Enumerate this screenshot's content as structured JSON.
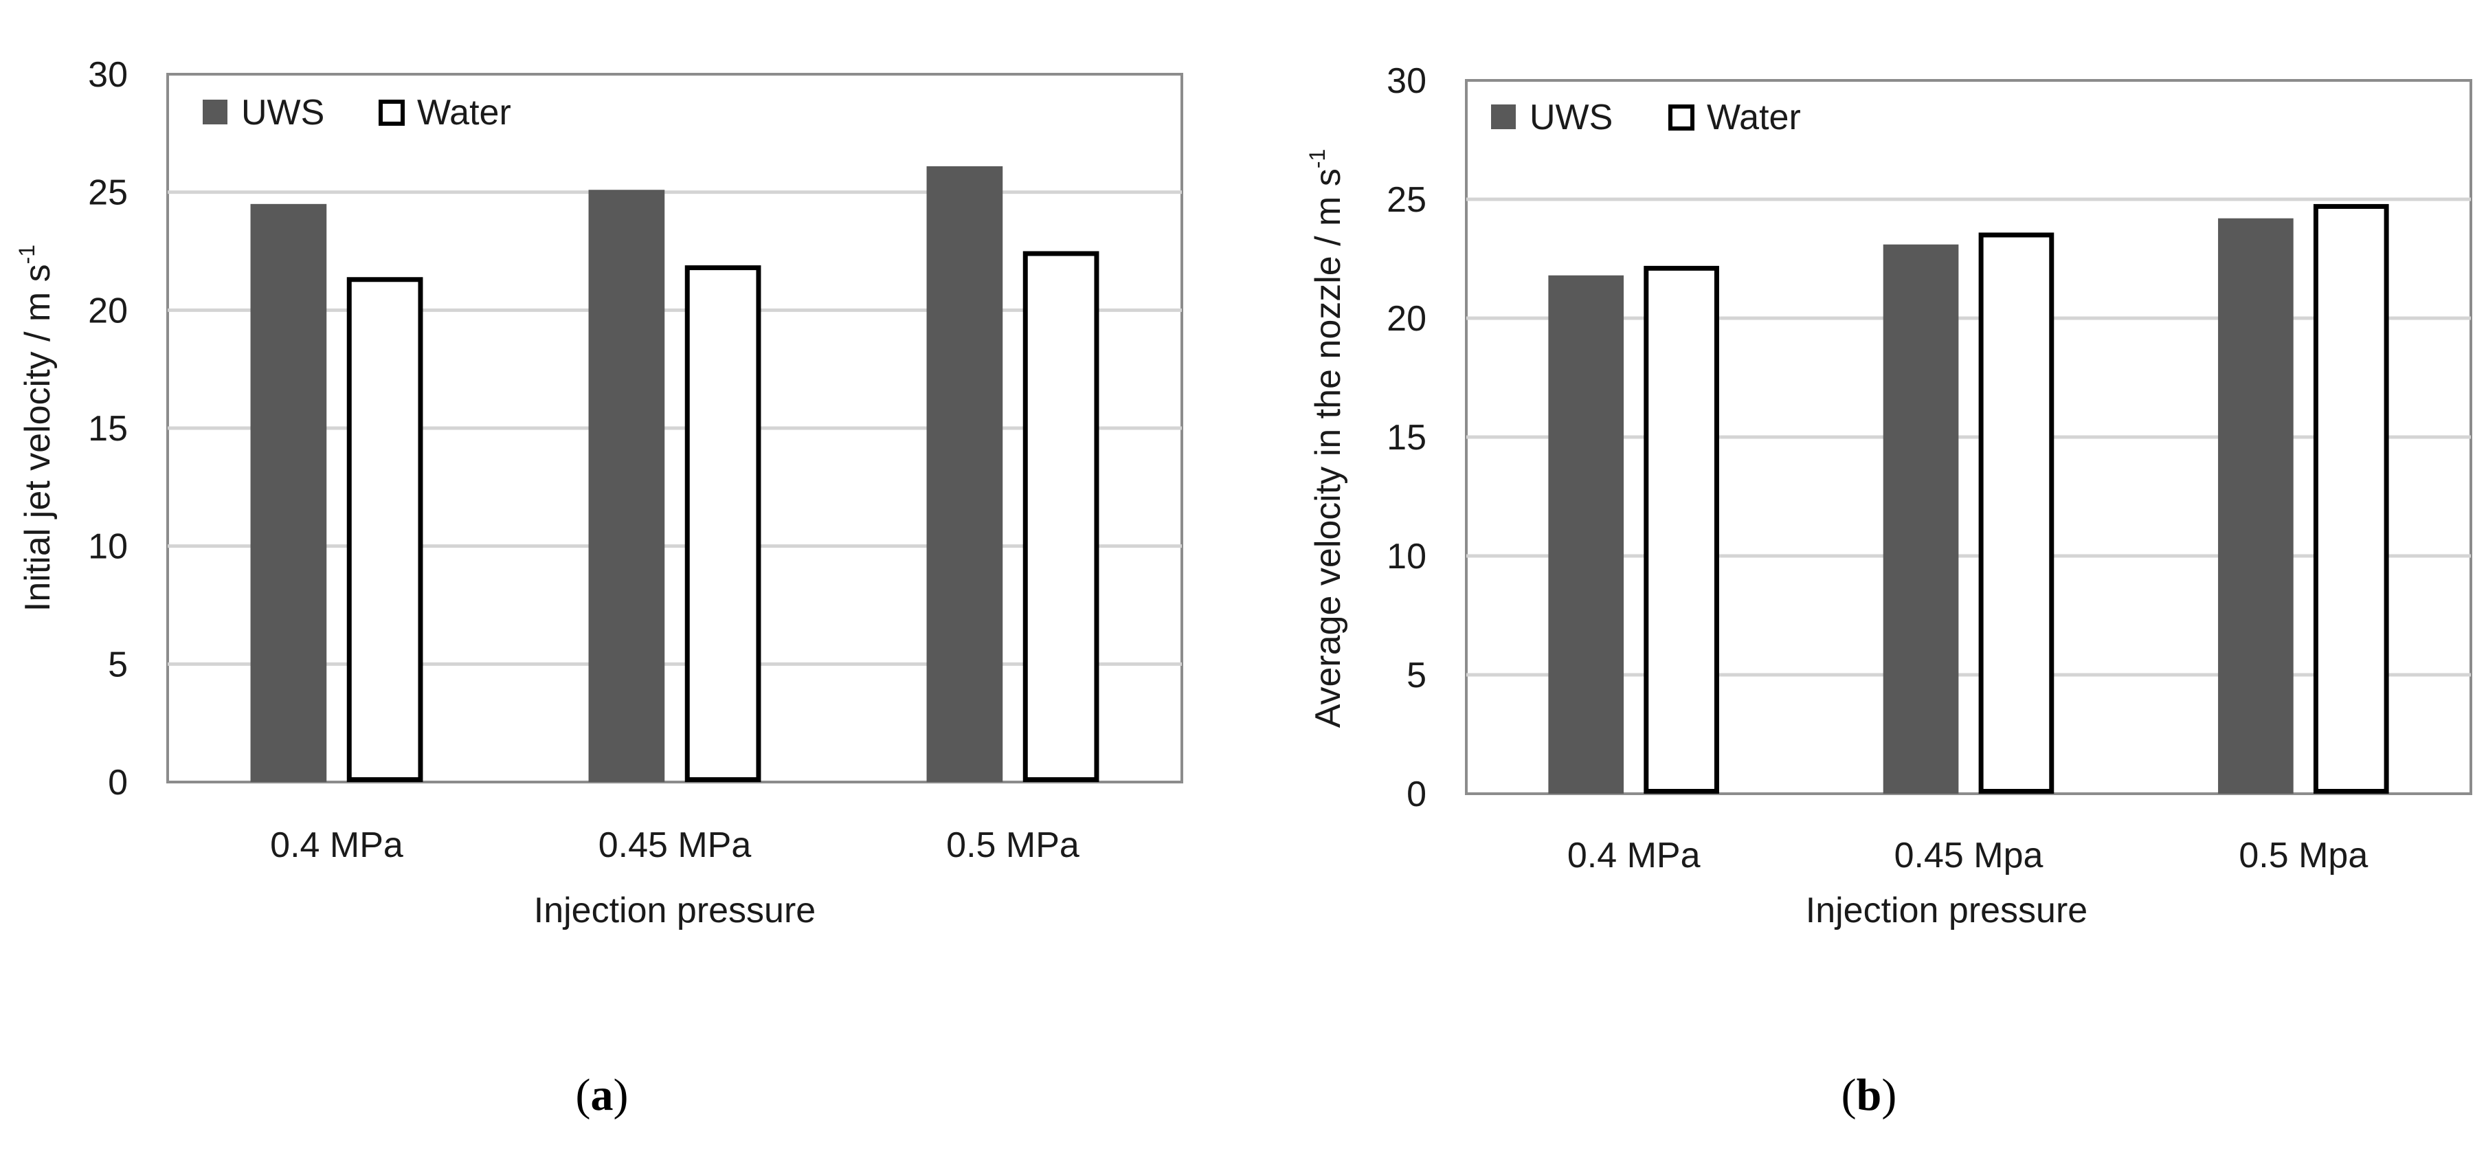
{
  "chart_data": [
    {
      "type": "bar",
      "panel_label": "a",
      "xlabel": "Injection pressure",
      "ylabel": "Initial jet velocity / m s",
      "ylabel_superscript": "-1",
      "categories": [
        "0.4 MPa",
        "0.45 MPa",
        "0.5 MPa"
      ],
      "series": [
        {
          "name": "UWS",
          "values": [
            24.5,
            25.1,
            26.1
          ],
          "color": "#595959",
          "style": "filled"
        },
        {
          "name": "Water",
          "values": [
            21.4,
            21.9,
            22.5
          ],
          "color": "#ffffff",
          "style": "outlined"
        }
      ],
      "ylim": [
        0,
        30
      ],
      "yticks": [
        0,
        5,
        10,
        15,
        20,
        25,
        30
      ],
      "grid": true,
      "legend": "top-left"
    },
    {
      "type": "bar",
      "panel_label": "b",
      "xlabel": "Injection pressure",
      "ylabel": "Average velocity in the nozzle / m s",
      "ylabel_superscript": "-1",
      "categories": [
        "0.4 MPa",
        "0.45 Mpa",
        "0.5 Mpa"
      ],
      "series": [
        {
          "name": "UWS",
          "values": [
            21.8,
            23.1,
            24.2
          ],
          "color": "#595959",
          "style": "filled"
        },
        {
          "name": "Water",
          "values": [
            22.2,
            23.6,
            24.8
          ],
          "color": "#ffffff",
          "style": "outlined"
        }
      ],
      "ylim": [
        0,
        30
      ],
      "yticks": [
        0,
        5,
        10,
        15,
        20,
        25,
        30
      ],
      "grid": true,
      "legend": "top-left"
    }
  ]
}
